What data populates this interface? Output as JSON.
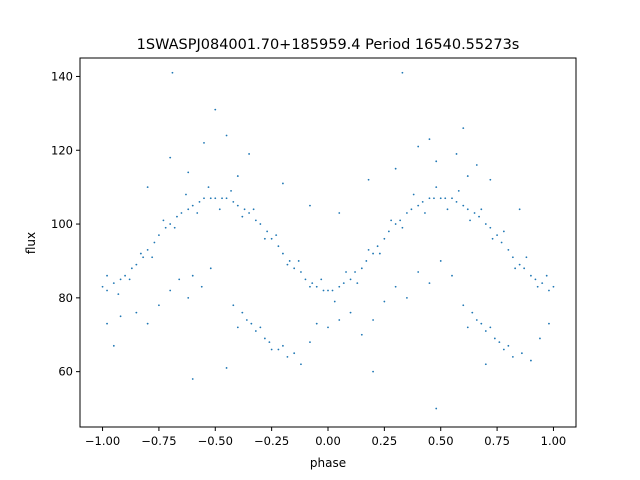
{
  "chart_data": {
    "type": "scatter",
    "title": "1SWASPJ084001.70+185959.4 Period 16540.55273s",
    "xlabel": "phase",
    "ylabel": "flux",
    "xlim": [
      -1.1,
      1.1
    ],
    "ylim": [
      45,
      145
    ],
    "grid": false,
    "marker_color": "#1f77b4",
    "x_ticks": [
      {
        "value": -1.0,
        "label": "−1.00"
      },
      {
        "value": -0.75,
        "label": "−0.75"
      },
      {
        "value": -0.5,
        "label": "−0.50"
      },
      {
        "value": -0.25,
        "label": "−0.25"
      },
      {
        "value": 0.0,
        "label": "0.00"
      },
      {
        "value": 0.25,
        "label": "0.25"
      },
      {
        "value": 0.5,
        "label": "0.50"
      },
      {
        "value": 0.75,
        "label": "0.75"
      },
      {
        "value": 1.0,
        "label": "1.00"
      }
    ],
    "y_ticks": [
      {
        "value": 60,
        "label": "60"
      },
      {
        "value": 80,
        "label": "80"
      },
      {
        "value": 100,
        "label": "100"
      },
      {
        "value": 120,
        "label": "120"
      },
      {
        "value": 140,
        "label": "140"
      }
    ],
    "series": [
      {
        "points": [
          [
            -1.0,
            83
          ],
          [
            -0.98,
            82
          ],
          [
            -0.95,
            84
          ],
          [
            -0.92,
            85
          ],
          [
            -0.9,
            86
          ],
          [
            -0.87,
            88
          ],
          [
            -0.85,
            89
          ],
          [
            -0.82,
            91
          ],
          [
            -0.8,
            93
          ],
          [
            -0.77,
            95
          ],
          [
            -0.75,
            97
          ],
          [
            -0.72,
            99
          ],
          [
            -0.7,
            100
          ],
          [
            -0.67,
            102
          ],
          [
            -0.65,
            103
          ],
          [
            -0.62,
            104
          ],
          [
            -0.6,
            105
          ],
          [
            -0.57,
            106
          ],
          [
            -0.55,
            107
          ],
          [
            -0.52,
            107
          ],
          [
            -0.5,
            107
          ],
          [
            -0.47,
            107
          ],
          [
            -0.45,
            107
          ],
          [
            -0.42,
            106
          ],
          [
            -0.4,
            105
          ],
          [
            -0.37,
            104
          ],
          [
            -0.35,
            103
          ],
          [
            -0.32,
            101
          ],
          [
            -0.3,
            100
          ],
          [
            -0.27,
            98
          ],
          [
            -0.25,
            96
          ],
          [
            -0.22,
            94
          ],
          [
            -0.2,
            92
          ],
          [
            -0.17,
            90
          ],
          [
            -0.15,
            88
          ],
          [
            -0.12,
            87
          ],
          [
            -0.1,
            85
          ],
          [
            -0.07,
            84
          ],
          [
            -0.05,
            83
          ],
          [
            -0.02,
            82
          ],
          [
            0.0,
            82
          ],
          [
            0.02,
            82
          ],
          [
            0.05,
            83
          ],
          [
            0.07,
            84
          ],
          [
            0.1,
            85
          ],
          [
            0.12,
            87
          ],
          [
            0.15,
            88
          ],
          [
            0.17,
            90
          ],
          [
            0.2,
            92
          ],
          [
            0.22,
            94
          ],
          [
            0.25,
            96
          ],
          [
            0.27,
            98
          ],
          [
            0.3,
            100
          ],
          [
            0.32,
            101
          ],
          [
            0.35,
            103
          ],
          [
            0.37,
            104
          ],
          [
            0.4,
            105
          ],
          [
            0.42,
            106
          ],
          [
            0.45,
            107
          ],
          [
            0.47,
            107
          ],
          [
            0.5,
            107
          ],
          [
            0.52,
            107
          ],
          [
            0.55,
            107
          ],
          [
            0.57,
            106
          ],
          [
            0.6,
            105
          ],
          [
            0.62,
            104
          ],
          [
            0.65,
            103
          ],
          [
            0.67,
            102
          ],
          [
            0.7,
            100
          ],
          [
            0.72,
            99
          ],
          [
            0.75,
            97
          ],
          [
            0.77,
            95
          ],
          [
            0.8,
            93
          ],
          [
            0.82,
            91
          ],
          [
            0.85,
            89
          ],
          [
            0.87,
            88
          ],
          [
            0.9,
            86
          ],
          [
            0.92,
            85
          ],
          [
            0.95,
            84
          ],
          [
            0.98,
            82
          ],
          [
            1.0,
            83
          ],
          [
            -0.98,
            86
          ],
          [
            -0.93,
            81
          ],
          [
            -0.88,
            85
          ],
          [
            -0.83,
            92
          ],
          [
            -0.78,
            91
          ],
          [
            -0.73,
            101
          ],
          [
            -0.68,
            99
          ],
          [
            -0.63,
            108
          ],
          [
            -0.58,
            103
          ],
          [
            -0.53,
            110
          ],
          [
            -0.48,
            104
          ],
          [
            -0.43,
            109
          ],
          [
            -0.38,
            102
          ],
          [
            -0.33,
            104
          ],
          [
            -0.28,
            96
          ],
          [
            -0.23,
            97
          ],
          [
            -0.18,
            89
          ],
          [
            -0.13,
            90
          ],
          [
            -0.08,
            83
          ],
          [
            -0.03,
            85
          ],
          [
            0.03,
            79
          ],
          [
            0.08,
            87
          ],
          [
            0.13,
            84
          ],
          [
            0.18,
            93
          ],
          [
            0.23,
            92
          ],
          [
            0.28,
            101
          ],
          [
            0.33,
            99
          ],
          [
            0.38,
            108
          ],
          [
            0.43,
            103
          ],
          [
            0.48,
            110
          ],
          [
            0.53,
            104
          ],
          [
            0.58,
            109
          ],
          [
            0.63,
            101
          ],
          [
            0.68,
            104
          ],
          [
            0.73,
            96
          ],
          [
            0.78,
            98
          ],
          [
            0.83,
            88
          ],
          [
            0.88,
            91
          ],
          [
            0.93,
            83
          ],
          [
            0.97,
            86
          ],
          [
            -0.8,
            110
          ],
          [
            -0.7,
            118
          ],
          [
            -0.62,
            114
          ],
          [
            -0.55,
            122
          ],
          [
            -0.4,
            113
          ],
          [
            -0.35,
            119
          ],
          [
            -0.2,
            111
          ],
          [
            -0.08,
            105
          ],
          [
            0.05,
            103
          ],
          [
            0.18,
            112
          ],
          [
            0.3,
            115
          ],
          [
            0.4,
            121
          ],
          [
            0.48,
            117
          ],
          [
            0.57,
            119
          ],
          [
            0.62,
            113
          ],
          [
            0.66,
            116
          ],
          [
            0.72,
            112
          ],
          [
            0.85,
            104
          ],
          [
            -0.45,
            124
          ],
          [
            -0.5,
            131
          ],
          [
            0.45,
            123
          ],
          [
            0.6,
            126
          ],
          [
            -0.69,
            141
          ],
          [
            0.33,
            141
          ],
          [
            -0.98,
            73
          ],
          [
            -0.95,
            67
          ],
          [
            -0.92,
            75
          ],
          [
            -0.85,
            76
          ],
          [
            -0.8,
            73
          ],
          [
            -0.75,
            78
          ],
          [
            -0.7,
            82
          ],
          [
            -0.66,
            85
          ],
          [
            -0.62,
            80
          ],
          [
            -0.6,
            86
          ],
          [
            -0.56,
            83
          ],
          [
            -0.52,
            88
          ],
          [
            -0.42,
            78
          ],
          [
            -0.4,
            72
          ],
          [
            -0.38,
            76
          ],
          [
            -0.36,
            74
          ],
          [
            -0.34,
            73
          ],
          [
            -0.32,
            71
          ],
          [
            -0.3,
            72
          ],
          [
            -0.28,
            69
          ],
          [
            -0.26,
            68
          ],
          [
            -0.22,
            66
          ],
          [
            -0.2,
            67
          ],
          [
            -0.18,
            64
          ],
          [
            -0.15,
            65
          ],
          [
            -0.12,
            62
          ],
          [
            -0.08,
            68
          ],
          [
            -0.05,
            73
          ],
          [
            0.0,
            72
          ],
          [
            0.05,
            74
          ],
          [
            0.1,
            76
          ],
          [
            0.15,
            70
          ],
          [
            0.2,
            74
          ],
          [
            0.25,
            79
          ],
          [
            0.3,
            83
          ],
          [
            0.35,
            80
          ],
          [
            0.4,
            87
          ],
          [
            0.45,
            84
          ],
          [
            0.5,
            90
          ],
          [
            0.55,
            86
          ],
          [
            0.6,
            78
          ],
          [
            0.62,
            72
          ],
          [
            0.64,
            76
          ],
          [
            0.66,
            74
          ],
          [
            0.68,
            73
          ],
          [
            0.7,
            71
          ],
          [
            0.72,
            72
          ],
          [
            0.74,
            69
          ],
          [
            0.76,
            68
          ],
          [
            0.78,
            66
          ],
          [
            0.8,
            67
          ],
          [
            0.82,
            64
          ],
          [
            0.86,
            65
          ],
          [
            0.9,
            63
          ],
          [
            0.94,
            69
          ],
          [
            0.98,
            73
          ],
          [
            -0.6,
            58
          ],
          [
            -0.45,
            61
          ],
          [
            -0.25,
            66
          ],
          [
            0.2,
            60
          ],
          [
            0.48,
            50
          ],
          [
            0.7,
            62
          ]
        ]
      }
    ]
  }
}
